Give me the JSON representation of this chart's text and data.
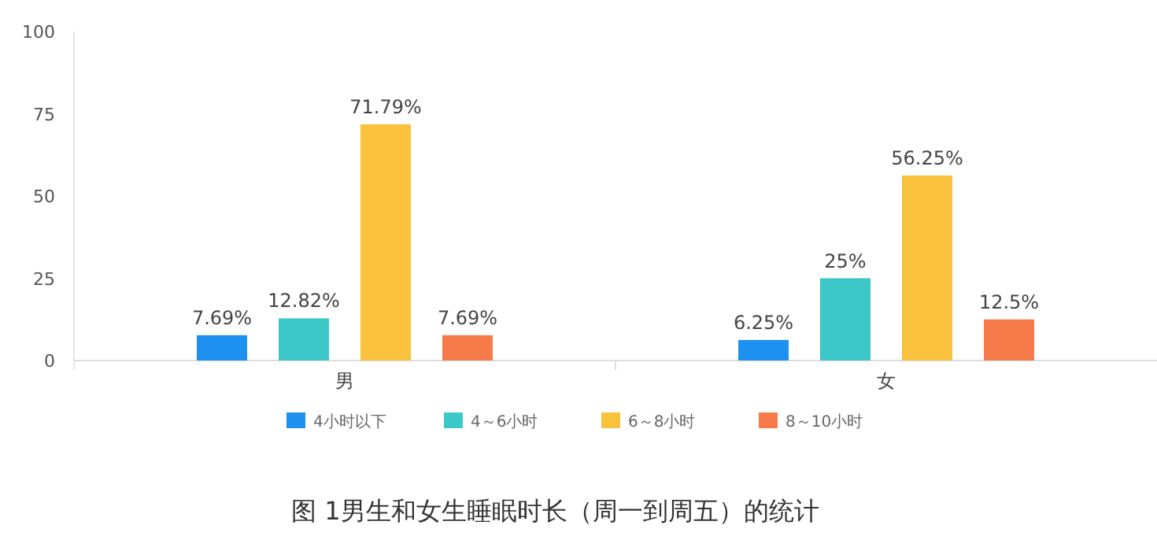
{
  "chart_data": {
    "type": "bar",
    "categories": [
      "男",
      "女"
    ],
    "series": [
      {
        "name": "4小时以下",
        "color": "#1e90f0",
        "values": [
          7.69,
          6.25
        ],
        "value_labels": [
          "7.69%",
          "6.25%"
        ]
      },
      {
        "name": "4～6小时",
        "color": "#3cc8c8",
        "values": [
          12.82,
          25
        ],
        "value_labels": [
          "12.82%",
          "25%"
        ]
      },
      {
        "name": "6～8小时",
        "color": "#fac23c",
        "values": [
          71.79,
          56.25
        ],
        "value_labels": [
          "71.79%",
          "56.25%"
        ]
      },
      {
        "name": "8～10小时",
        "color": "#f77b4a",
        "values": [
          7.69,
          12.5
        ],
        "value_labels": [
          "7.69%",
          "12.5%"
        ]
      }
    ],
    "ylim": [
      0,
      100
    ],
    "yticks": [
      0,
      25,
      50,
      75,
      100
    ],
    "grid": false,
    "legend": "bottom",
    "annotations": [
      "图 1男生和女生睡眠时长（周一到周五）的统计"
    ]
  }
}
